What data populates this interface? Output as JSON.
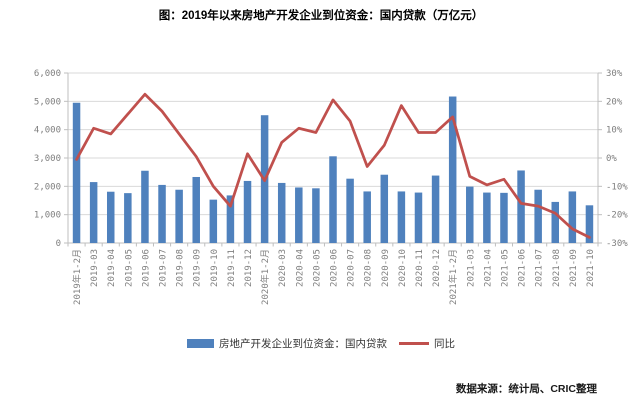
{
  "title": "图：2019年以来房地产开发企业到位资金：国内贷款（万亿元）",
  "source": "数据来源：统计局、CRIC整理",
  "legend": {
    "bar_label": "房地产开发企业到位资金：国内贷款",
    "line_label": "同比"
  },
  "colors": {
    "bar": "#4f81bd",
    "line": "#c0504d",
    "gridline": "#d9d9d9",
    "axis_line": "#bfbfbf",
    "axis_text": "#7f7f7f"
  },
  "chart_data": {
    "type": "bar",
    "subtype": "bar-line-combo",
    "grid": true,
    "legend_position": "bottom",
    "categories": [
      "2019年1-2月",
      "2019-03",
      "2019-04",
      "2019-05",
      "2019-06",
      "2019-07",
      "2019-08",
      "2019-09",
      "2019-10",
      "2019-11",
      "2019-12",
      "2020年1-2月",
      "2020-03",
      "2020-04",
      "2020-05",
      "2020-06",
      "2020-07",
      "2020-08",
      "2020-09",
      "2020-10",
      "2020-11",
      "2020-12",
      "2021年1-2月",
      "2021-03",
      "2021-04",
      "2021-05",
      "2021-06",
      "2021-07",
      "2021-08",
      "2021-09",
      "2021-10"
    ],
    "series": [
      {
        "name": "房地产开发企业到位资金：国内贷款",
        "type": "bar",
        "axis": "left",
        "values": [
          4950,
          2150,
          1810,
          1760,
          2550,
          2050,
          1880,
          2330,
          1530,
          1680,
          2190,
          4510,
          2120,
          1960,
          1930,
          3060,
          2270,
          1820,
          2410,
          1820,
          1780,
          2380,
          5170,
          1990,
          1780,
          1770,
          2560,
          1880,
          1450,
          1820,
          1330
        ]
      },
      {
        "name": "同比",
        "type": "line",
        "axis": "right",
        "unit": "%",
        "values": [
          -0.5,
          10.5,
          8.5,
          15.5,
          22.5,
          16.5,
          8.5,
          0.5,
          -10,
          -17,
          1.5,
          -8,
          5.5,
          10.5,
          9,
          20.5,
          13,
          -3,
          4.5,
          18.5,
          9,
          9,
          14.5,
          -6.5,
          -9.5,
          -7.5,
          -16,
          -17,
          -19.5,
          -25,
          -28
        ]
      }
    ],
    "left_axis": {
      "min": 0,
      "max": 6000,
      "step": 1000,
      "tick_labels": [
        "0",
        "1,000",
        "2,000",
        "3,000",
        "4,000",
        "5,000",
        "6,000"
      ]
    },
    "right_axis": {
      "min": -30,
      "max": 30,
      "step": 10,
      "tick_labels": [
        "-30%",
        "-20%",
        "-10%",
        "0%",
        "10%",
        "20%",
        "30%"
      ]
    }
  }
}
